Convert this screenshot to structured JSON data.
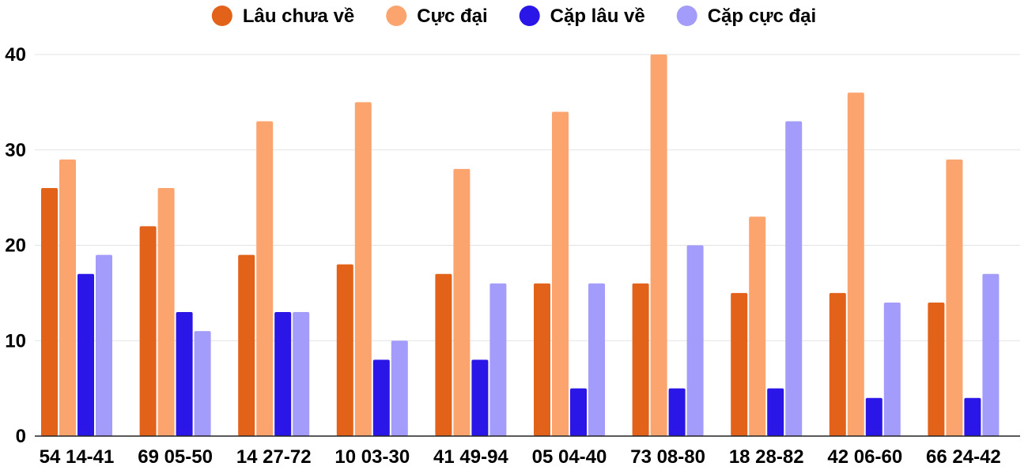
{
  "chart_data": {
    "type": "bar",
    "title": "",
    "xlabel": "",
    "ylabel": "",
    "ylim": [
      0,
      40
    ],
    "yticks": [
      0,
      10,
      20,
      30,
      40
    ],
    "grid": true,
    "legend_position": "top-center",
    "categories": [
      "54 14-41",
      "69 05-50",
      "14 27-72",
      "10 03-30",
      "41 49-94",
      "05 04-40",
      "73 08-80",
      "18 28-82",
      "42 06-60",
      "66 24-42"
    ],
    "series": [
      {
        "name": "Lâu chưa về",
        "color": "#e2621a",
        "values": [
          26,
          22,
          19,
          18,
          17,
          16,
          16,
          15,
          15,
          14
        ]
      },
      {
        "name": "Cực đại",
        "color": "#fba46e",
        "values": [
          29,
          26,
          33,
          35,
          28,
          34,
          40,
          23,
          36,
          29
        ]
      },
      {
        "name": "Cặp lâu về",
        "color": "#2a16e6",
        "values": [
          17,
          13,
          13,
          8,
          8,
          5,
          5,
          5,
          4,
          4
        ]
      },
      {
        "name": "Cặp cực đại",
        "color": "#a39cfb",
        "values": [
          19,
          11,
          13,
          10,
          16,
          16,
          20,
          33,
          14,
          17
        ]
      }
    ]
  }
}
